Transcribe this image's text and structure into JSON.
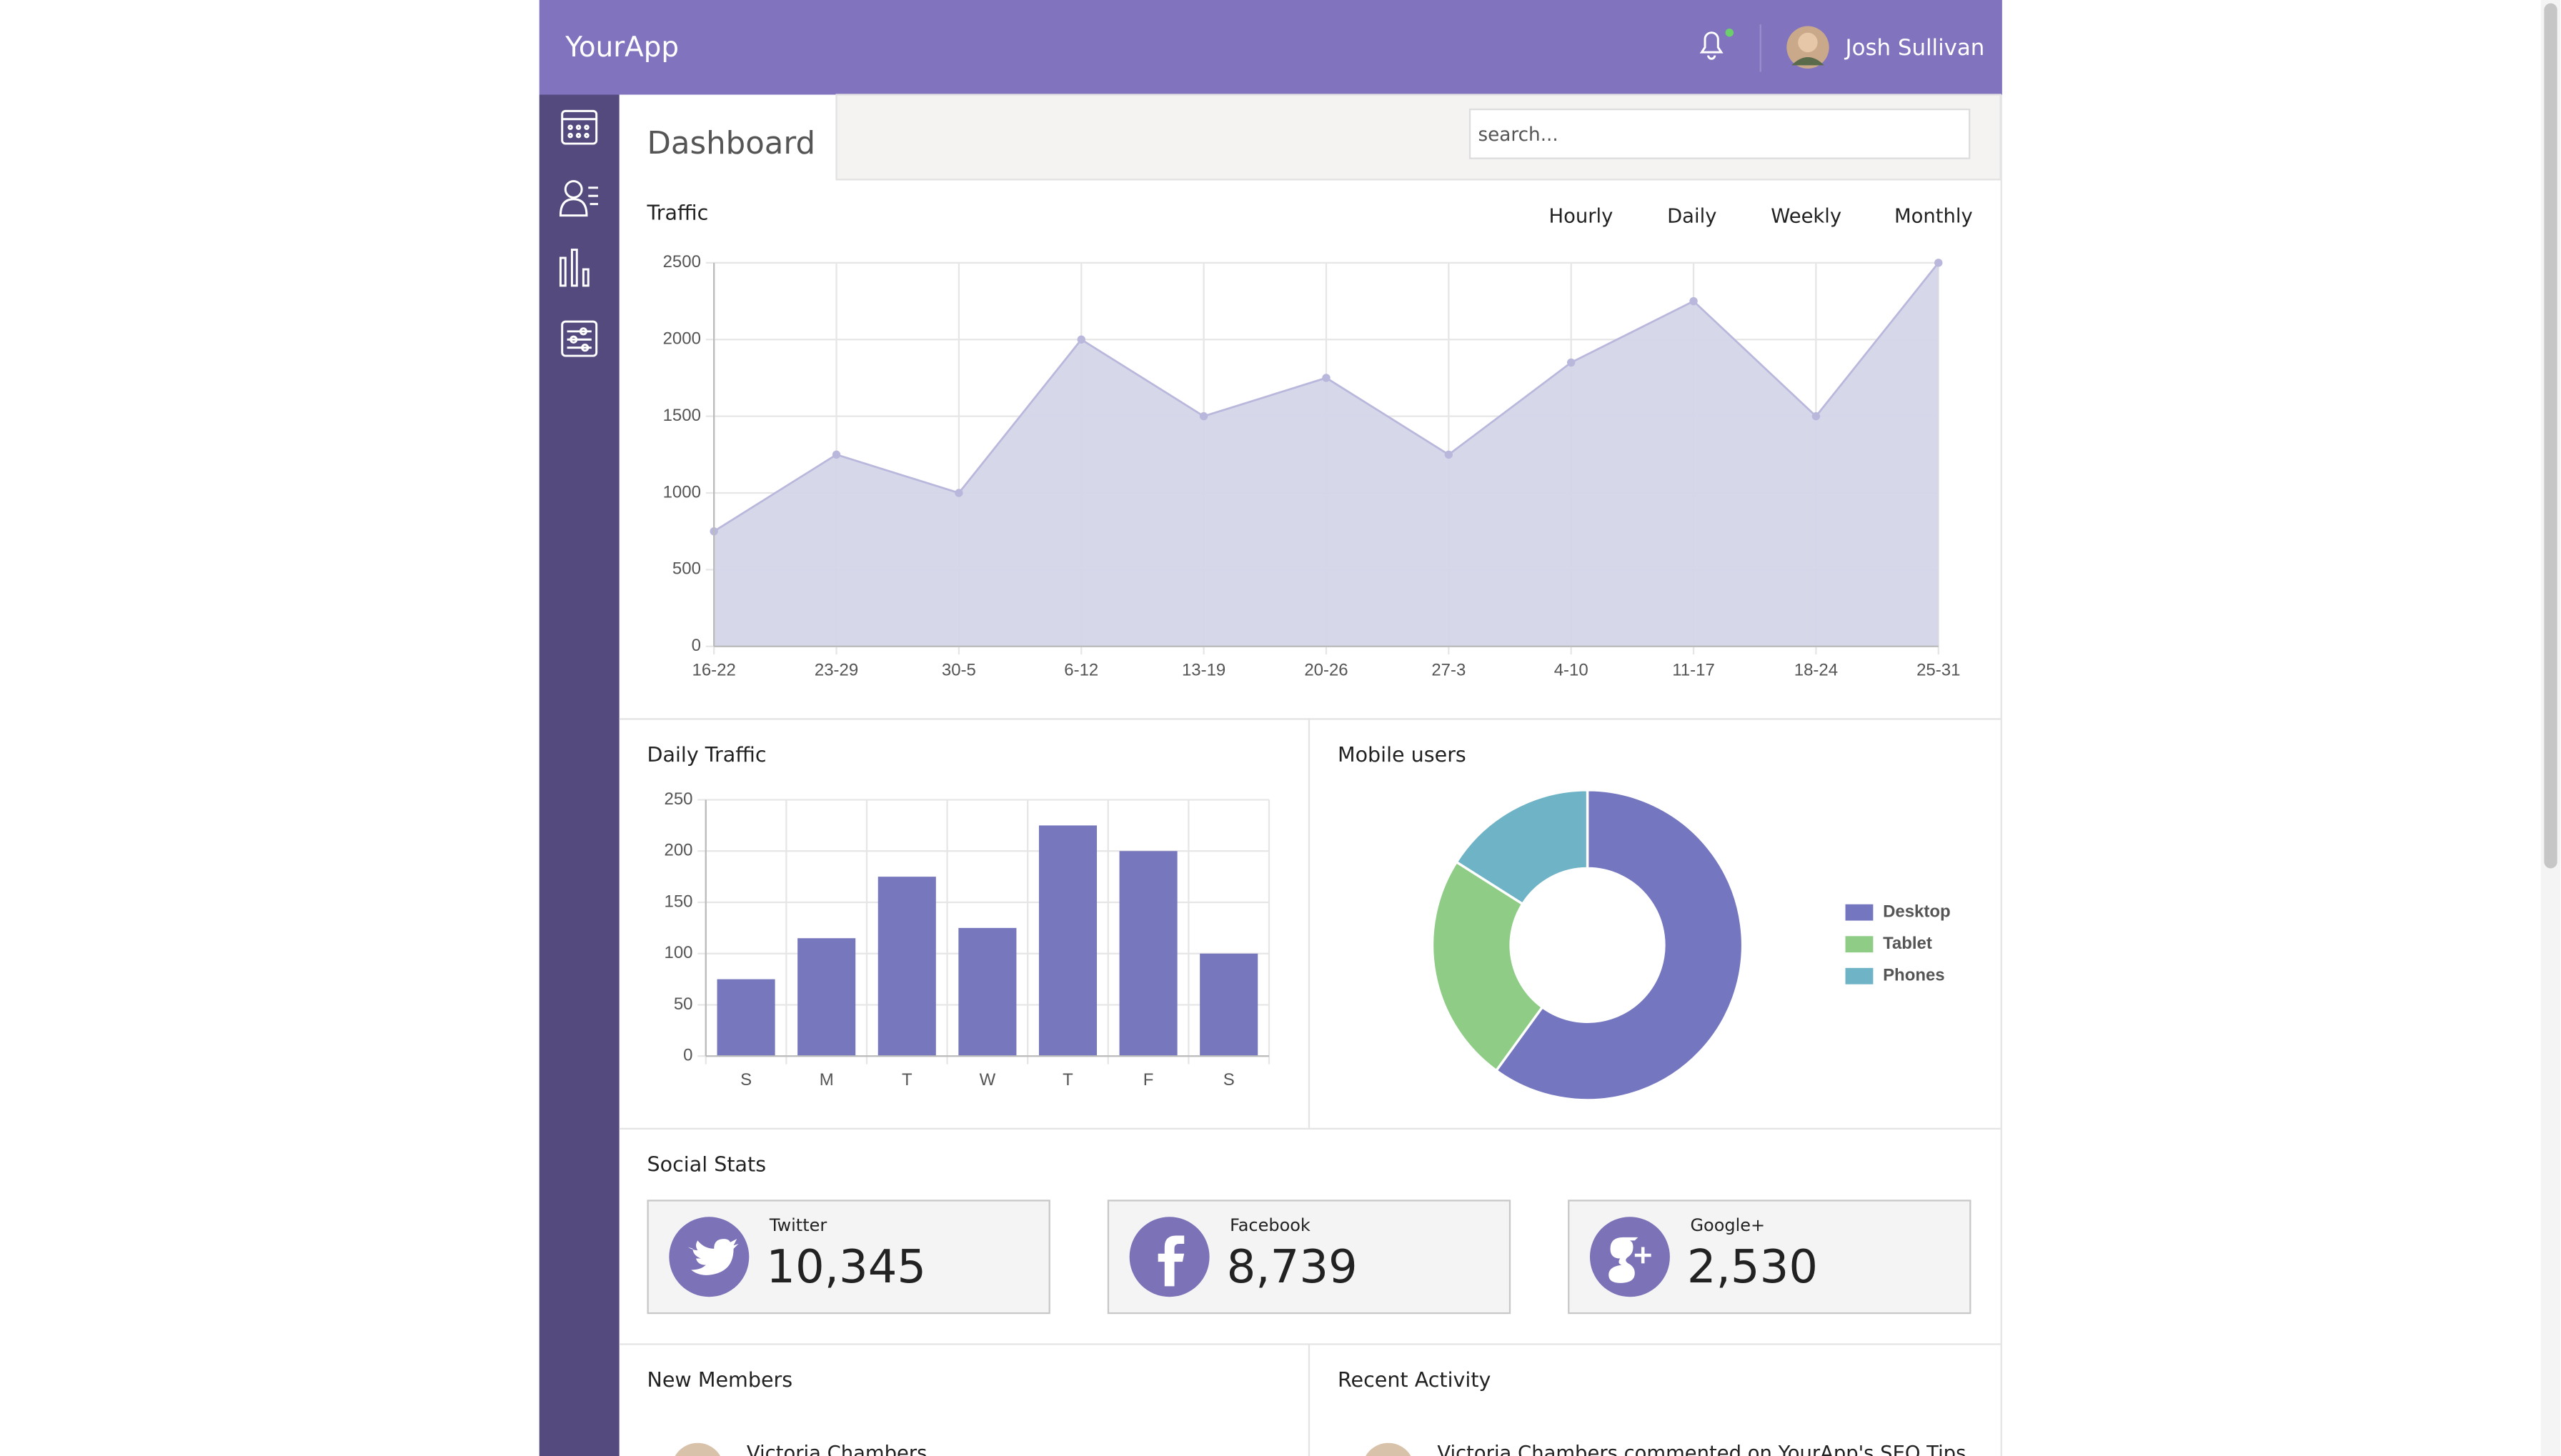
{
  "header": {
    "brand": "YourApp",
    "user": "Josh Sullivan"
  },
  "page_title": "Dashboard",
  "search_placeholder": "search...",
  "chart_data": [
    {
      "type": "area",
      "title": "Traffic",
      "filters": [
        "Hourly",
        "Daily",
        "Weekly",
        "Monthly"
      ],
      "categories": [
        "16-22",
        "23-29",
        "30-5",
        "6-12",
        "13-19",
        "20-26",
        "27-3",
        "4-10",
        "11-17",
        "18-24",
        "25-31"
      ],
      "values": [
        750,
        1250,
        1000,
        2000,
        1500,
        1750,
        1250,
        1850,
        2250,
        1500,
        2500
      ],
      "color": "#b9b8dc",
      "fill": "#d5d5e9",
      "ylim": [
        0,
        2500
      ],
      "yticks": [
        0,
        500,
        1000,
        1500,
        2000,
        2500
      ],
      "grid": true
    },
    {
      "type": "bar",
      "title": "Daily Traffic",
      "categories": [
        "S",
        "M",
        "T",
        "W",
        "T",
        "F",
        "S"
      ],
      "values": [
        75,
        115,
        175,
        125,
        225,
        200,
        100
      ],
      "color": "#7677bc",
      "ylim": [
        0,
        250
      ],
      "yticks": [
        0,
        50,
        100,
        150,
        200,
        250
      ],
      "grid": true
    },
    {
      "type": "doughnut",
      "title": "Mobile users",
      "categories": [
        "Desktop",
        "Tablet",
        "Phones"
      ],
      "values": [
        60,
        24,
        16
      ],
      "colors": [
        "#7477bf",
        "#8fcd87",
        "#6fb3c6"
      ],
      "legend": "right"
    }
  ],
  "social": {
    "title": "Social Stats",
    "cards": [
      {
        "name": "Twitter",
        "value": "10,345"
      },
      {
        "name": "Facebook",
        "value": "8,739"
      },
      {
        "name": "Google+",
        "value": "2,530"
      }
    ]
  },
  "members": {
    "title": "New Members",
    "items": [
      "Victoria Chambers"
    ]
  },
  "activity": {
    "title": "Recent Activity",
    "items": [
      "Victoria Chambers commented on YourApp's SEO Tips"
    ]
  }
}
